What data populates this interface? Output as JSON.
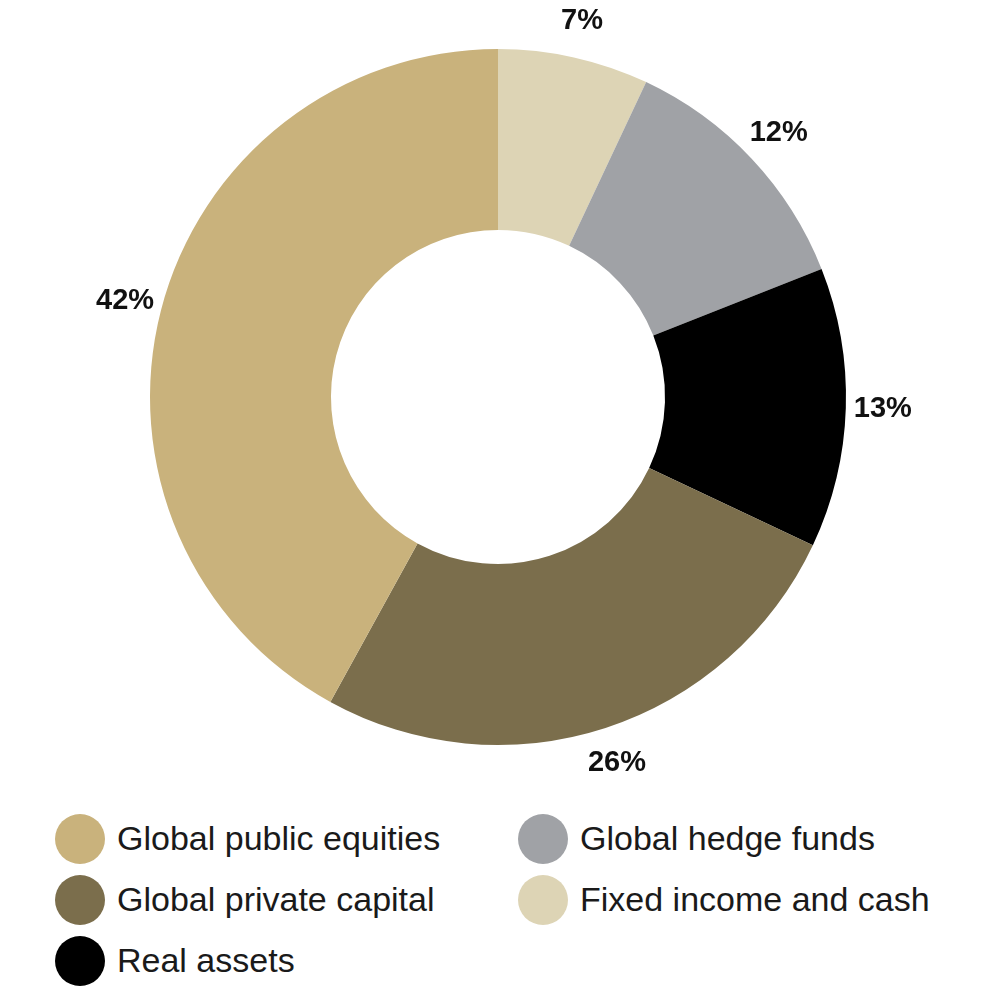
{
  "chart_data": {
    "type": "doughnut",
    "categories": [
      "Fixed income and cash",
      "Global hedge funds",
      "Real assets",
      "Global private capital",
      "Global public equities"
    ],
    "values": [
      7,
      12,
      13,
      26,
      42
    ],
    "value_labels": [
      "7%",
      "12%",
      "13%",
      "26%",
      "42%"
    ],
    "colors": [
      "#ddd4b5",
      "#a0a2a6",
      "#000000",
      "#7b6e4c",
      "#c9b27c"
    ],
    "data_labels": true,
    "legend": "bottom"
  }
}
